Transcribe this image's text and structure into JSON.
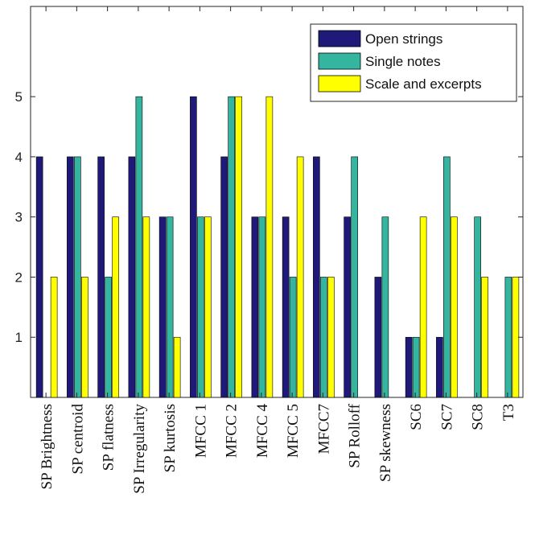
{
  "chart_data": {
    "type": "bar",
    "title": "",
    "xlabel": "",
    "ylabel": "",
    "categories": [
      "SP Brightness",
      "SP centroid",
      "SP flatness",
      "SP Irregularity",
      "SP kurtosis",
      "MFCC 1",
      "MFCC 2",
      "MFCC 4",
      "MFCC 5",
      "MFCC7",
      "SP Rolloff",
      "SP skewness",
      "SC6",
      "SC7",
      "SC8",
      "T3"
    ],
    "series": [
      {
        "name": "Open strings",
        "color": "#1f1a7a",
        "values": [
          4,
          4,
          4,
          4,
          3,
          5,
          4,
          3,
          3,
          4,
          3,
          2,
          1,
          1,
          0,
          0
        ]
      },
      {
        "name": "Single notes",
        "color": "#33b5a0",
        "values": [
          0,
          4,
          2,
          5,
          3,
          3,
          5,
          3,
          2,
          2,
          4,
          3,
          1,
          4,
          3,
          2
        ]
      },
      {
        "name": "Scale and excerpts",
        "color": "#ffff00",
        "values": [
          2,
          2,
          3,
          3,
          1,
          3,
          5,
          5,
          4,
          2,
          0,
          0,
          3,
          3,
          2,
          2
        ]
      }
    ],
    "yticks": [
      1,
      2,
      3,
      4,
      5
    ],
    "ylim": [
      0,
      6.5
    ],
    "legend_position": "top-right",
    "grid": false
  }
}
